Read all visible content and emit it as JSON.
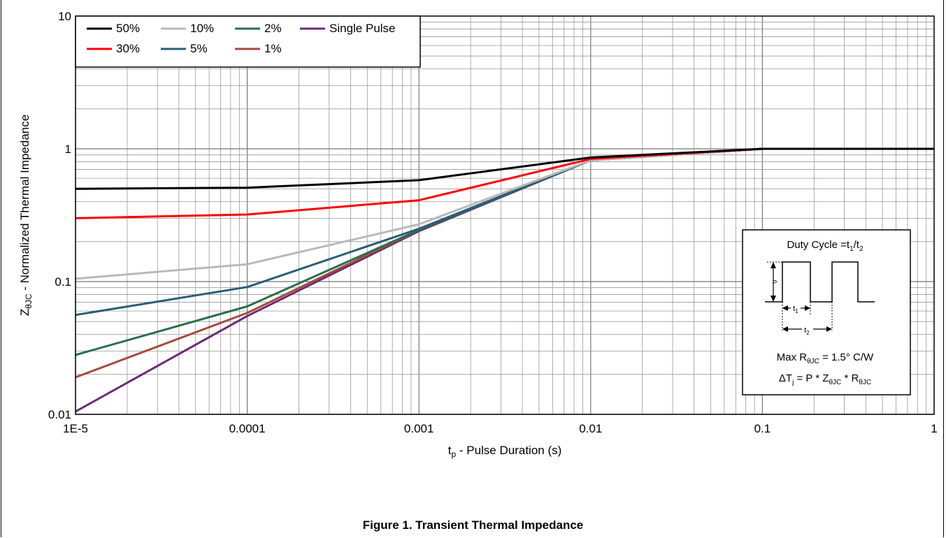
{
  "caption": "Figure 1.  Transient Thermal Impedance",
  "chart_data": {
    "type": "line",
    "scale": {
      "x": "log",
      "y": "log"
    },
    "xlim": [
      1e-05,
      1
    ],
    "ylim": [
      0.01,
      10
    ],
    "grid": true,
    "legend_position": "top-left",
    "x_ticks": [
      "1E-5",
      "0.0001",
      "0.001",
      "0.01",
      "0.1",
      "1"
    ],
    "y_ticks": [
      "0.01",
      "0.1",
      "1",
      "10"
    ],
    "xlabel": {
      "main": "t",
      "sub": "p",
      "rest": " - Pulse Duration (s)"
    },
    "ylabel": {
      "main": "Z",
      "sub": "θJC",
      "rest": " - Normalized Thermal Impedance"
    },
    "x": [
      1e-05,
      0.0001,
      0.001,
      0.01,
      0.1,
      1
    ],
    "series": [
      {
        "name": "50%",
        "color": "#000000",
        "values": [
          0.5,
          0.51,
          0.58,
          0.86,
          1.0,
          1.0
        ]
      },
      {
        "name": "30%",
        "color": "#ff0000",
        "values": [
          0.3,
          0.32,
          0.41,
          0.84,
          1.0,
          1.0
        ]
      },
      {
        "name": "10%",
        "color": "#b9b9b9",
        "values": [
          0.105,
          0.135,
          0.27,
          0.82,
          1.0,
          1.0
        ]
      },
      {
        "name": "5%",
        "color": "#275f7a",
        "values": [
          0.056,
          0.091,
          0.25,
          0.82,
          1.0,
          1.0
        ]
      },
      {
        "name": "2%",
        "color": "#2a6e4a",
        "values": [
          0.028,
          0.065,
          0.245,
          0.82,
          1.0,
          1.0
        ]
      },
      {
        "name": "1%",
        "color": "#a84a3f",
        "values": [
          0.019,
          0.058,
          0.245,
          0.82,
          1.0,
          1.0
        ]
      },
      {
        "name": "Single Pulse",
        "color": "#6a2a76",
        "values": [
          0.0105,
          0.055,
          0.24,
          0.82,
          1.0,
          1.0
        ]
      }
    ],
    "legend_rows": [
      [
        "50%",
        "10%",
        "2%",
        "Single Pulse"
      ],
      [
        "30%",
        "5%",
        "1%"
      ]
    ],
    "inset": {
      "title": {
        "main": "Duty Cycle =t",
        "sub1": "1",
        "mid": "/t",
        "sub2": "2"
      },
      "p_label": "P",
      "t1_label": {
        "main": "t",
        "sub": "1"
      },
      "t2_label": {
        "main": "t",
        "sub": "2"
      },
      "line1": {
        "a": "Max R",
        "sub": "θJC",
        "b": " = 1.5° C/W"
      },
      "line2": {
        "a": "ΔT",
        "sub1": "j",
        "b": " = P * Z",
        "sub2": "θJC",
        "c": " * R",
        "sub3": "θJC"
      }
    }
  }
}
